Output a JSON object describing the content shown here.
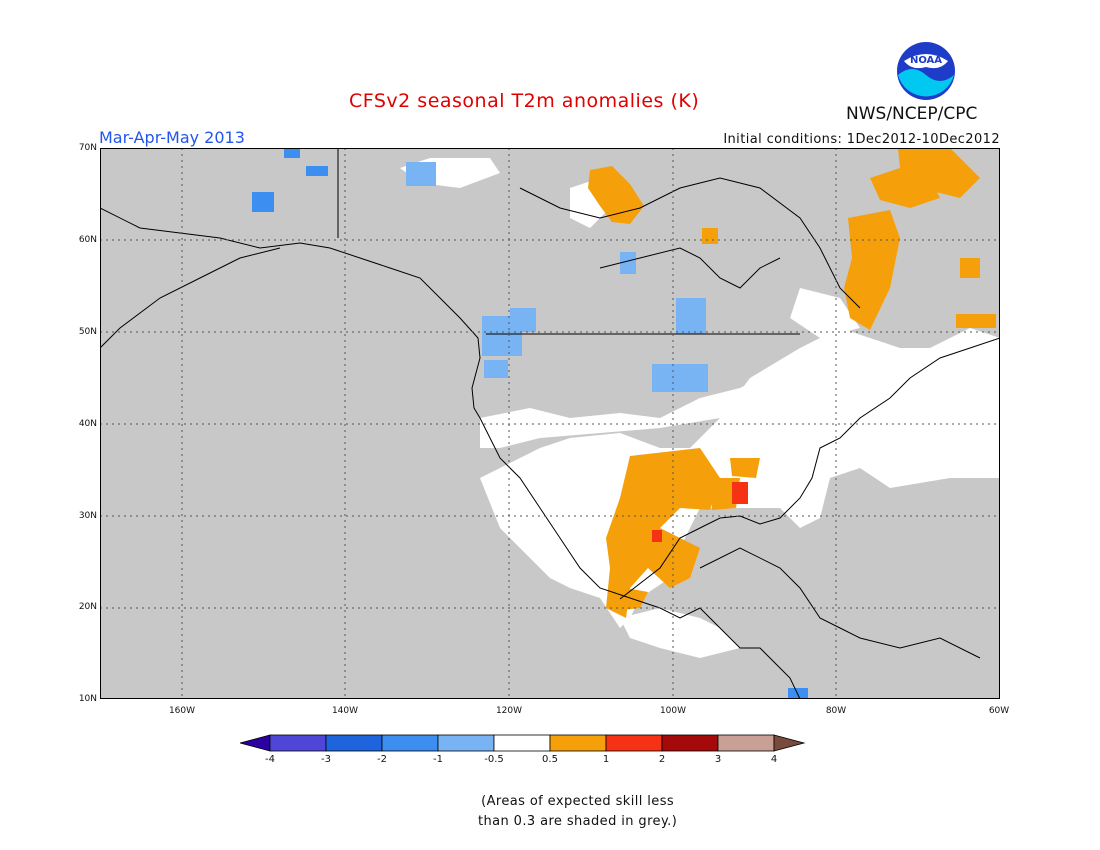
{
  "header": {
    "title": "CFSv2 seasonal T2m anomalies (K)",
    "season": "Mar-Apr-May 2013",
    "initial_conditions": "Initial conditions: 1Dec2012-10Dec2012",
    "agency": "NWS/NCEP/CPC",
    "logo_text": "NOAA"
  },
  "map": {
    "projection": "lat-lon",
    "lon_range": [
      "-170",
      "-60"
    ],
    "lat_range": [
      10,
      70
    ],
    "background_color": "#c8c8c8",
    "grid": "dotted",
    "lat_labels": [
      "70N",
      "60N",
      "50N",
      "40N",
      "30N",
      "20N",
      "10N"
    ],
    "lon_labels": [
      "160W",
      "140W",
      "120W",
      "100W",
      "80W",
      "60W"
    ]
  },
  "colorbar": {
    "bins": [
      {
        "color": "#2a00a0"
      },
      {
        "color": "#4f45d6"
      },
      {
        "color": "#1e64dc"
      },
      {
        "color": "#3c8ef0"
      },
      {
        "color": "#78b4f4"
      },
      {
        "color": "#ffffff"
      },
      {
        "color": "#f5a00a"
      },
      {
        "color": "#f53214"
      },
      {
        "color": "#a50a0a"
      },
      {
        "color": "#c8a096"
      },
      {
        "color": "#784b3c"
      }
    ],
    "tick_labels": [
      "-4",
      "-3",
      "-2",
      "-1",
      "-0.5",
      "0.5",
      "1",
      "2",
      "3",
      "4"
    ]
  },
  "note": {
    "line1": "(Areas of expected skill less",
    "line2": "than 0.3 are shaded in grey.)"
  }
}
